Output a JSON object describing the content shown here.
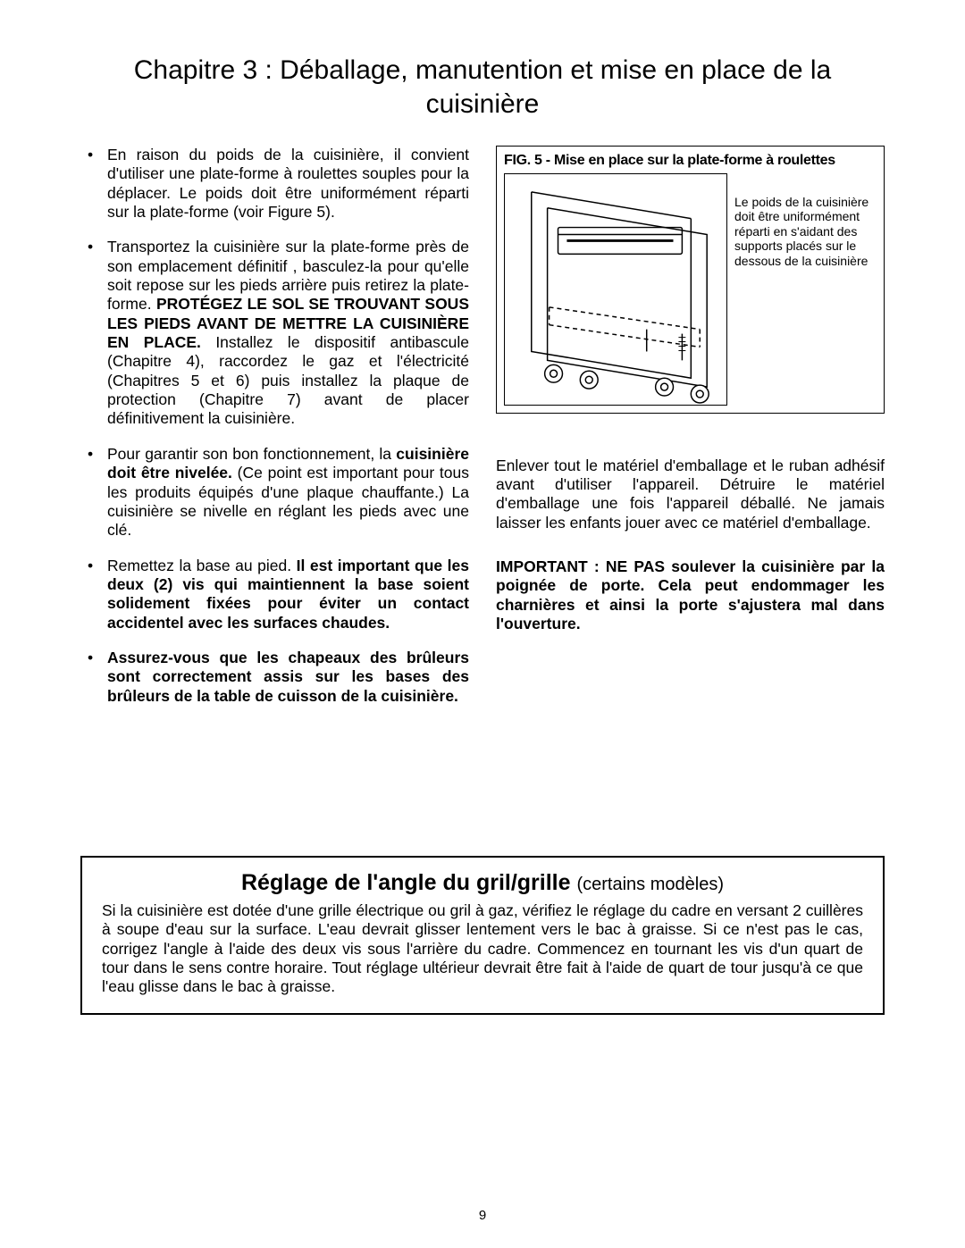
{
  "title": "Chapitre 3 : Déballage, manutention et mise en place de la cuisinière",
  "left": {
    "bullets": [
      {
        "html": "En raison du poids de la cuisinière, il convient d'utiliser une plate-forme à roulettes souples pour la déplacer. Le poids doit être uniformément réparti sur la plate-forme (voir Figure 5)."
      },
      {
        "html": "Transportez la cuisinière sur la plate-forme près de son emplacement définitif , basculez-la pour qu'elle soit repose sur les pieds arrière puis retirez la plate-forme. <b class='bold'>PROTÉGEZ LE SOL SE TROUVANT SOUS LES PIEDS AVANT DE METTRE LA CUISINIÈRE EN PLACE.</b> Installez le dispositif antibascule (Chapitre 4), raccordez le gaz et l'électricité (Chapitres 5 et 6) puis installez la plaque de protection (Chapitre 7) avant de placer définitivement la cuisinière."
      },
      {
        "html": "Pour garantir son bon fonctionnement, la <b class='bold'>cuisinière doit être nivelée.</b> (Ce point est important pour tous les produits équipés d'une plaque chauffante.) La cuisinière se nivelle en réglant les pieds avec une clé."
      },
      {
        "html": "Remettez la base au pied. <b class='bold'>Il est important que les deux (2) vis qui maintiennent la base soient solidement fixées pour éviter un contact accidentel avec les surfaces chaudes.</b>"
      },
      {
        "html": "<b class='bold'>Assurez-vous que les chapeaux des brûleurs sont correctement assis sur les bases des brûleurs de la table de cuisson de la cuisinière.</b>"
      }
    ]
  },
  "right": {
    "figure": {
      "title": "FIG. 5 - Mise en place sur la plate-forme à roulettes",
      "caption": "Le poids de la cuisinière doit être uniformément réparti en s'aidant des supports placés sur le dessous de la cuisinière",
      "diagram": {
        "stroke": "#000000",
        "fill": "#ffffff"
      }
    },
    "para": "Enlever tout le matériel d'emballage et le ruban adhésif avant d'utiliser l'appareil. Détruire le matériel d'emballage une fois l'appareil déballé. Ne jamais laisser les enfants jouer avec ce matériel d'emballage.",
    "important": "IMPORTANT : NE PAS soulever la cuisinière par la poignée de porte. Cela peut endommager les charnières et ainsi la porte s'ajustera mal dans l'ouverture."
  },
  "boxed": {
    "heading_main": "Réglage de l'angle du gril/grille",
    "heading_sub": "(certains modèles)",
    "body": "Si la cuisinière est dotée d'une grille électrique ou gril à gaz, vérifiez le réglage du cadre en versant 2 cuillères à soupe d'eau sur la surface. L'eau devrait glisser lentement  vers le bac  à graisse. Si ce n'est pas le cas,  corrigez l'angle à l'aide des deux vis sous l'arrière du cadre. Commencez en tournant les vis d'un quart de tour dans le sens contre horaire. Tout réglage ultérieur devrait être fait à l'aide de quart de tour jusqu'à ce que l'eau glisse dans le bac à graisse."
  },
  "page_number": "9"
}
